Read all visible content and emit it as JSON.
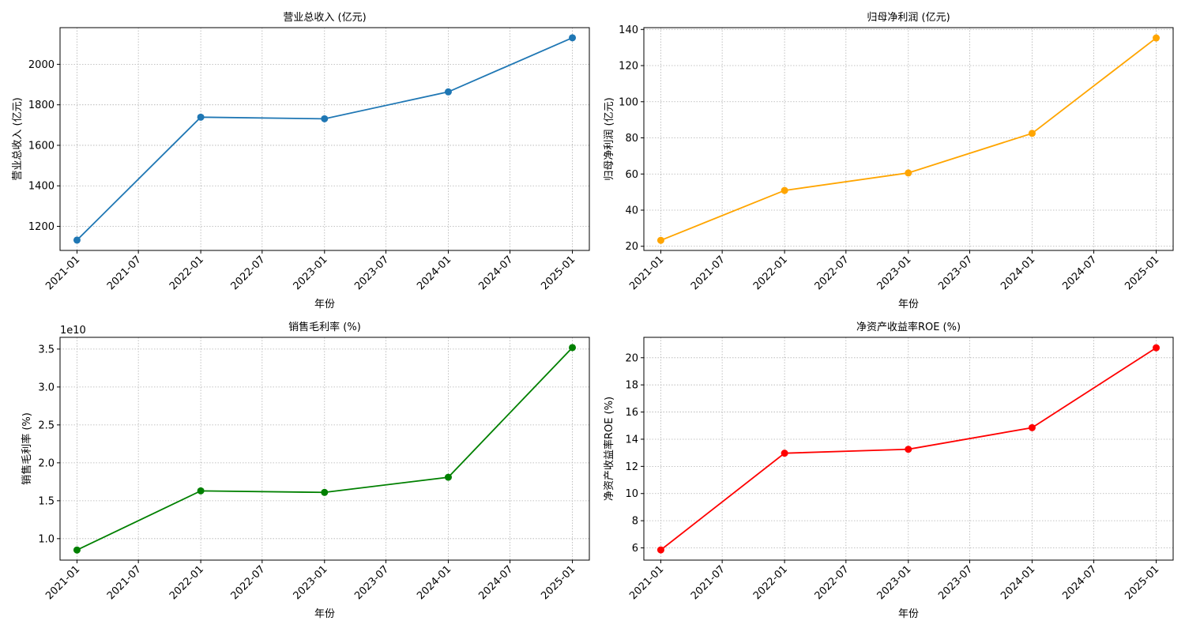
{
  "chart_data": [
    {
      "type": "line",
      "title": "营业总收入 (亿元)",
      "xlabel": "年份",
      "ylabel": "营业总收入 (亿元)",
      "x": [
        "2021-01-01",
        "2022-01-01",
        "2023-01-01",
        "2024-01-01",
        "2025-01-01"
      ],
      "xticks": [
        "2021-01",
        "2021-07",
        "2022-01",
        "2022-07",
        "2023-01",
        "2023-07",
        "2024-01",
        "2024-07",
        "2025-01"
      ],
      "series": [
        {
          "values": [
            1132,
            1739,
            1731,
            1864,
            2131
          ],
          "color": "#1f77b4"
        }
      ],
      "yticks": [
        1200,
        1400,
        1600,
        1800,
        2000
      ],
      "ylim": [
        1081,
        2181
      ],
      "offset_text": "",
      "grid": true
    },
    {
      "type": "line",
      "title": "归母净利润 (亿元)",
      "xlabel": "年份",
      "ylabel": "归母净利润 (亿元)",
      "x": [
        "2021-01-01",
        "2022-01-01",
        "2023-01-01",
        "2024-01-01",
        "2025-01-01"
      ],
      "xticks": [
        "2021-01",
        "2021-07",
        "2022-01",
        "2022-07",
        "2023-01",
        "2023-07",
        "2024-01",
        "2024-07",
        "2025-01"
      ],
      "series": [
        {
          "values": [
            23.3,
            50.9,
            60.6,
            82.5,
            135.3
          ],
          "color": "#ffa500"
        }
      ],
      "yticks": [
        20,
        40,
        60,
        80,
        100,
        120,
        140
      ],
      "ylim": [
        17.7,
        141.0
      ],
      "offset_text": "",
      "grid": true
    },
    {
      "type": "line",
      "title": "销售毛利率 (%)",
      "xlabel": "年份",
      "ylabel": "销售毛利率 (%)",
      "x": [
        "2021-01-01",
        "2022-01-01",
        "2023-01-01",
        "2024-01-01",
        "2025-01-01"
      ],
      "xticks": [
        "2021-01",
        "2021-07",
        "2022-01",
        "2022-07",
        "2023-01",
        "2023-07",
        "2024-01",
        "2024-07",
        "2025-01"
      ],
      "series": [
        {
          "values": [
            0.85,
            1.63,
            1.61,
            1.81,
            3.52
          ],
          "color": "#008000"
        }
      ],
      "yticks": [
        1.0,
        1.5,
        2.0,
        2.5,
        3.0,
        3.5
      ],
      "ytick_labels": [
        "1.0",
        "1.5",
        "2.0",
        "2.5",
        "3.0",
        "3.5"
      ],
      "ylim": [
        0.717,
        3.655
      ],
      "offset_text": "1e10",
      "grid": true
    },
    {
      "type": "line",
      "title": "净资产收益率ROE (%)",
      "xlabel": "年份",
      "ylabel": "净资产收益率ROE (%)",
      "x": [
        "2021-01-01",
        "2022-01-01",
        "2023-01-01",
        "2024-01-01",
        "2025-01-01"
      ],
      "xticks": [
        "2021-01",
        "2021-07",
        "2022-01",
        "2022-07",
        "2023-01",
        "2023-07",
        "2024-01",
        "2024-07",
        "2025-01"
      ],
      "series": [
        {
          "values": [
            5.85,
            12.97,
            13.26,
            14.85,
            20.73
          ],
          "color": "#ff0000"
        }
      ],
      "yticks": [
        6,
        8,
        10,
        12,
        14,
        16,
        18,
        20
      ],
      "ylim": [
        5.1,
        21.5
      ],
      "offset_text": "",
      "grid": true
    }
  ]
}
